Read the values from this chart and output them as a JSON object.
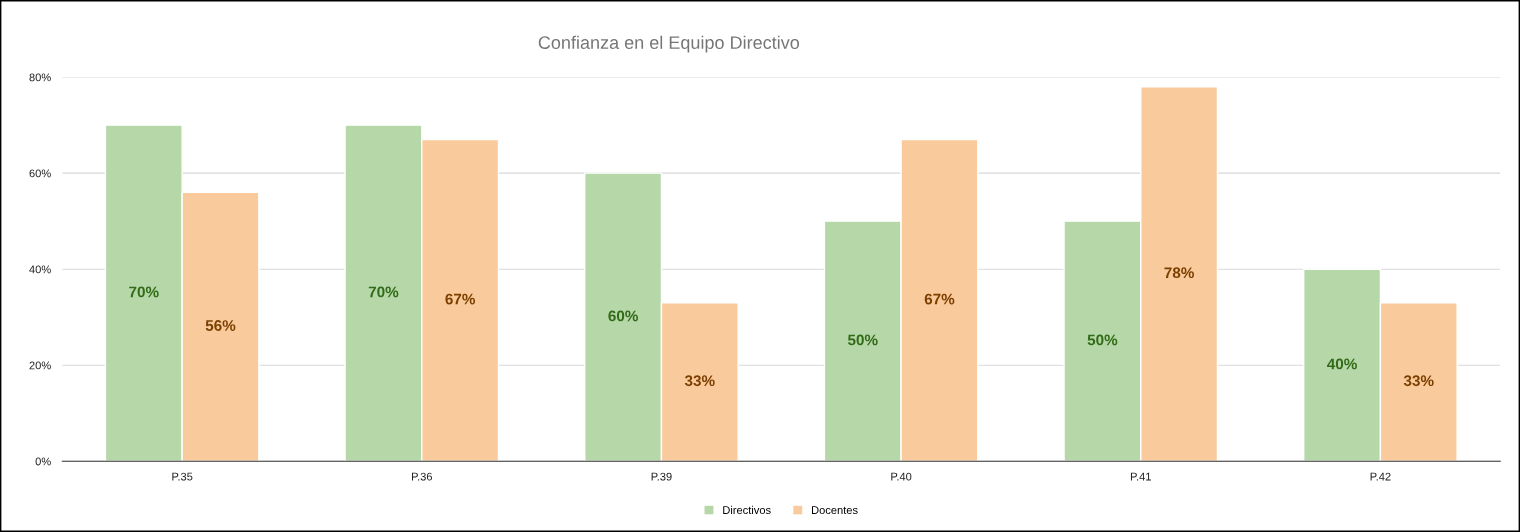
{
  "chart_data": {
    "type": "bar",
    "title": "Confianza en el Equipo Directivo",
    "categories": [
      "P.35",
      "P.36",
      "P.39",
      "P.40",
      "P.41",
      "P.42"
    ],
    "series": [
      {
        "name": "Directivos",
        "color": "#b6d7a8",
        "values": [
          70,
          70,
          60,
          50,
          50,
          40
        ],
        "value_labels": [
          "70%",
          "70%",
          "60%",
          "50%",
          "50%",
          "40%"
        ]
      },
      {
        "name": "Docentes",
        "color": "#f9cb9c",
        "values": [
          56,
          67,
          33,
          67,
          78,
          33
        ],
        "value_labels": [
          "56%",
          "67%",
          "33%",
          "67%",
          "78%",
          "33%"
        ]
      }
    ],
    "ylim": [
      0,
      80
    ],
    "yticks": [
      {
        "value": 0,
        "label": "0%"
      },
      {
        "value": 20,
        "label": "20%"
      },
      {
        "value": 40,
        "label": "40%"
      },
      {
        "value": 60,
        "label": "60%"
      },
      {
        "value": 80,
        "label": "80%"
      }
    ],
    "grid": "y",
    "legend": "bottom"
  }
}
